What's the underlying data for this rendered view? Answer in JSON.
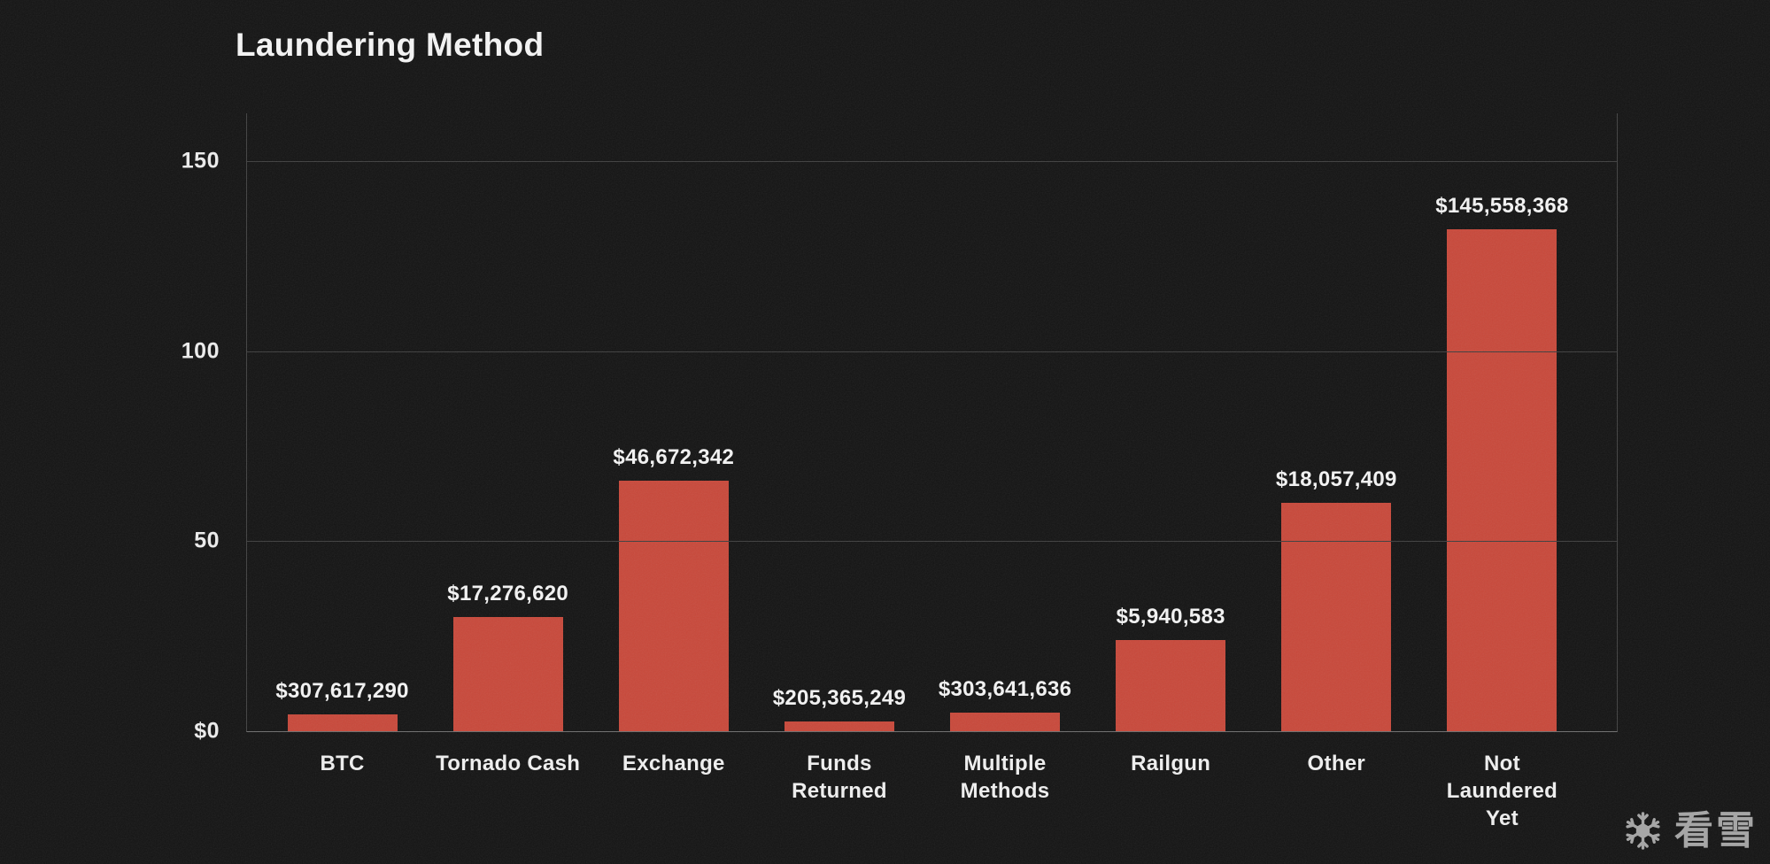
{
  "page": {
    "background_color": "#131313",
    "text_color": "#f5f5f5"
  },
  "chart": {
    "title": "Laundering Method",
    "bar_color": "#c8483a",
    "grid_color": "#3e3e3e",
    "axis_color": "#6e6e6e",
    "yticks": [
      {
        "label": "$0",
        "value": 0
      },
      {
        "label": "50",
        "value": 50
      },
      {
        "label": "100",
        "value": 100
      },
      {
        "label": "150",
        "value": 150
      }
    ],
    "bars": [
      {
        "category": "BTC",
        "label_lines": [
          "BTC"
        ],
        "value_label": "$307,617,290",
        "bar_value": 4.5
      },
      {
        "category": "Tornado Cash",
        "label_lines": [
          "Tornado Cash"
        ],
        "value_label": "$17,276,620",
        "bar_value": 30
      },
      {
        "category": "Exchange",
        "label_lines": [
          "Exchange"
        ],
        "value_label": "$46,672,342",
        "bar_value": 66
      },
      {
        "category": "Funds Returned",
        "label_lines": [
          "Funds",
          "Returned"
        ],
        "value_label": "$205,365,249",
        "bar_value": 2.6
      },
      {
        "category": "Multiple Methods",
        "label_lines": [
          "Multiple",
          "Methods"
        ],
        "value_label": "$303,641,636",
        "bar_value": 4.9
      },
      {
        "category": "Railgun",
        "label_lines": [
          "Railgun"
        ],
        "value_label": "$5,940,583",
        "bar_value": 24
      },
      {
        "category": "Other",
        "label_lines": [
          "Other"
        ],
        "value_label": "$18,057,409",
        "bar_value": 60
      },
      {
        "category": "Not Laundered Yet",
        "label_lines": [
          "Not",
          "Laundered",
          "Yet"
        ],
        "value_label": "$145,558,368",
        "bar_value": 132
      }
    ]
  },
  "watermark": {
    "icon": "snowflake-icon",
    "text": "看雪",
    "color": "#a6a6a6"
  },
  "chart_data": {
    "type": "bar",
    "title": "Laundering Method",
    "categories": [
      "BTC",
      "Tornado Cash",
      "Exchange",
      "Funds Returned",
      "Multiple Methods",
      "Railgun",
      "Other",
      "Not Laundered Yet"
    ],
    "values": [
      4.5,
      30,
      66,
      2.6,
      4.9,
      24,
      60,
      132
    ],
    "data_labels": [
      "$307,617,290",
      "$17,276,620",
      "$46,672,342",
      "$205,365,249",
      "$303,641,636",
      "$5,940,583",
      "$18,057,409",
      "$145,558,368"
    ],
    "xlabel": "",
    "ylabel": "",
    "ylim": [
      0,
      163
    ],
    "ytick_labels": [
      "$0",
      "50",
      "100",
      "150"
    ],
    "grid": "horizontal",
    "legend": false,
    "bar_color": "#c8483a",
    "background": "#131313"
  }
}
